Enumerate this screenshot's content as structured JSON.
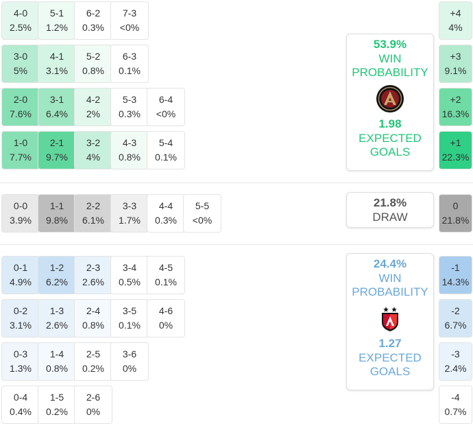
{
  "home": {
    "cells": [
      {
        "s": "4-0",
        "p": "2.5%",
        "c": "#e3f7ee"
      },
      {
        "s": "5-1",
        "p": "1.2%",
        "c": "#eefaf4"
      },
      {
        "s": "6-2",
        "p": "0.3%",
        "c": "#ffffff"
      },
      {
        "s": "7-3",
        "p": "<0%",
        "c": "#ffffff"
      },
      {
        "s": "3-0",
        "p": "5%",
        "c": "#b5ebd1"
      },
      {
        "s": "4-1",
        "p": "3.1%",
        "c": "#d4f4e4"
      },
      {
        "s": "5-2",
        "p": "0.8%",
        "c": "#f1fbf6"
      },
      {
        "s": "6-3",
        "p": "0.1%",
        "c": "#ffffff"
      },
      {
        "s": "2-0",
        "p": "7.6%",
        "c": "#86e0b4"
      },
      {
        "s": "3-1",
        "p": "6.4%",
        "c": "#9fe6c2"
      },
      {
        "s": "4-2",
        "p": "2%",
        "c": "#e1f7ec"
      },
      {
        "s": "5-3",
        "p": "0.3%",
        "c": "#ffffff"
      },
      {
        "s": "6-4",
        "p": "<0%",
        "c": "#ffffff"
      },
      {
        "s": "1-0",
        "p": "7.7%",
        "c": "#86e0b4"
      },
      {
        "s": "2-1",
        "p": "9.7%",
        "c": "#5fd79c"
      },
      {
        "s": "3-2",
        "p": "4%",
        "c": "#c7f0dc"
      },
      {
        "s": "4-3",
        "p": "0.8%",
        "c": "#f1fbf6"
      },
      {
        "s": "5-4",
        "p": "0.1%",
        "c": "#ffffff"
      }
    ],
    "goal_diff": [
      {
        "s": "+4",
        "p": "4%",
        "c": "#dcf6e9"
      },
      {
        "s": "+3",
        "p": "9.1%",
        "c": "#b3ead0"
      },
      {
        "s": "+2",
        "p": "16.3%",
        "c": "#6fdca5"
      },
      {
        "s": "+1",
        "p": "22.3%",
        "c": "#2fcf86"
      }
    ],
    "card": {
      "win_pct": "53.9%",
      "win_label_1": "WIN",
      "win_label_2": "PROBABILITY",
      "xg": "1.98",
      "xg_label_1": "EXPECTED",
      "xg_label_2": "GOALS",
      "accent": "#22c47a",
      "logo": "atlanta-united-crest"
    }
  },
  "draw": {
    "cells": [
      {
        "s": "0-0",
        "p": "3.9%",
        "c": "#e9e9e9"
      },
      {
        "s": "1-1",
        "p": "9.8%",
        "c": "#bdbdbd"
      },
      {
        "s": "2-2",
        "p": "6.1%",
        "c": "#d4d4d4"
      },
      {
        "s": "3-3",
        "p": "1.7%",
        "c": "#efefef"
      },
      {
        "s": "4-4",
        "p": "0.3%",
        "c": "#ffffff"
      },
      {
        "s": "5-5",
        "p": "<0%",
        "c": "#ffffff"
      }
    ],
    "goal_diff": {
      "s": "0",
      "p": "21.8%",
      "c": "#a9a9a9"
    },
    "card": {
      "pct": "21.8%",
      "label": "DRAW",
      "color": "#555555"
    }
  },
  "away": {
    "cells": [
      {
        "s": "0-1",
        "p": "4.9%",
        "c": "#dcebf8"
      },
      {
        "s": "1-2",
        "p": "6.2%",
        "c": "#c9e0f5"
      },
      {
        "s": "2-3",
        "p": "2.6%",
        "c": "#e8f2fb"
      },
      {
        "s": "3-4",
        "p": "0.5%",
        "c": "#ffffff"
      },
      {
        "s": "4-5",
        "p": "0.1%",
        "c": "#ffffff"
      },
      {
        "s": "0-2",
        "p": "3.1%",
        "c": "#e5f0fa"
      },
      {
        "s": "1-3",
        "p": "2.6%",
        "c": "#e8f2fb"
      },
      {
        "s": "2-4",
        "p": "0.8%",
        "c": "#f4f9fd"
      },
      {
        "s": "3-5",
        "p": "0.1%",
        "c": "#ffffff"
      },
      {
        "s": "4-6",
        "p": "0%",
        "c": "#ffffff"
      },
      {
        "s": "0-3",
        "p": "1.3%",
        "c": "#f0f6fc"
      },
      {
        "s": "1-4",
        "p": "0.8%",
        "c": "#f4f9fd"
      },
      {
        "s": "2-5",
        "p": "0.2%",
        "c": "#ffffff"
      },
      {
        "s": "3-6",
        "p": "0%",
        "c": "#ffffff"
      },
      {
        "s": "0-4",
        "p": "0.4%",
        "c": "#ffffff"
      },
      {
        "s": "1-5",
        "p": "0.2%",
        "c": "#ffffff"
      },
      {
        "s": "2-6",
        "p": "0%",
        "c": "#ffffff"
      }
    ],
    "goal_diff": [
      {
        "s": "-1",
        "p": "14.3%",
        "c": "#a9cdee"
      },
      {
        "s": "-2",
        "p": "6.7%",
        "c": "#d2e6f6"
      },
      {
        "s": "-3",
        "p": "2.4%",
        "c": "#e9f3fb"
      },
      {
        "s": "-4",
        "p": "0.7%",
        "c": "#ffffff"
      }
    ],
    "card": {
      "win_pct": "24.4%",
      "win_label_1": "WIN",
      "win_label_2": "PROBABILITY",
      "xg": "1.27",
      "xg_label_1": "EXPECTED",
      "xg_label_2": "GOALS",
      "accent": "#6aa8d6",
      "logo": "atlas-fc-crest"
    }
  }
}
